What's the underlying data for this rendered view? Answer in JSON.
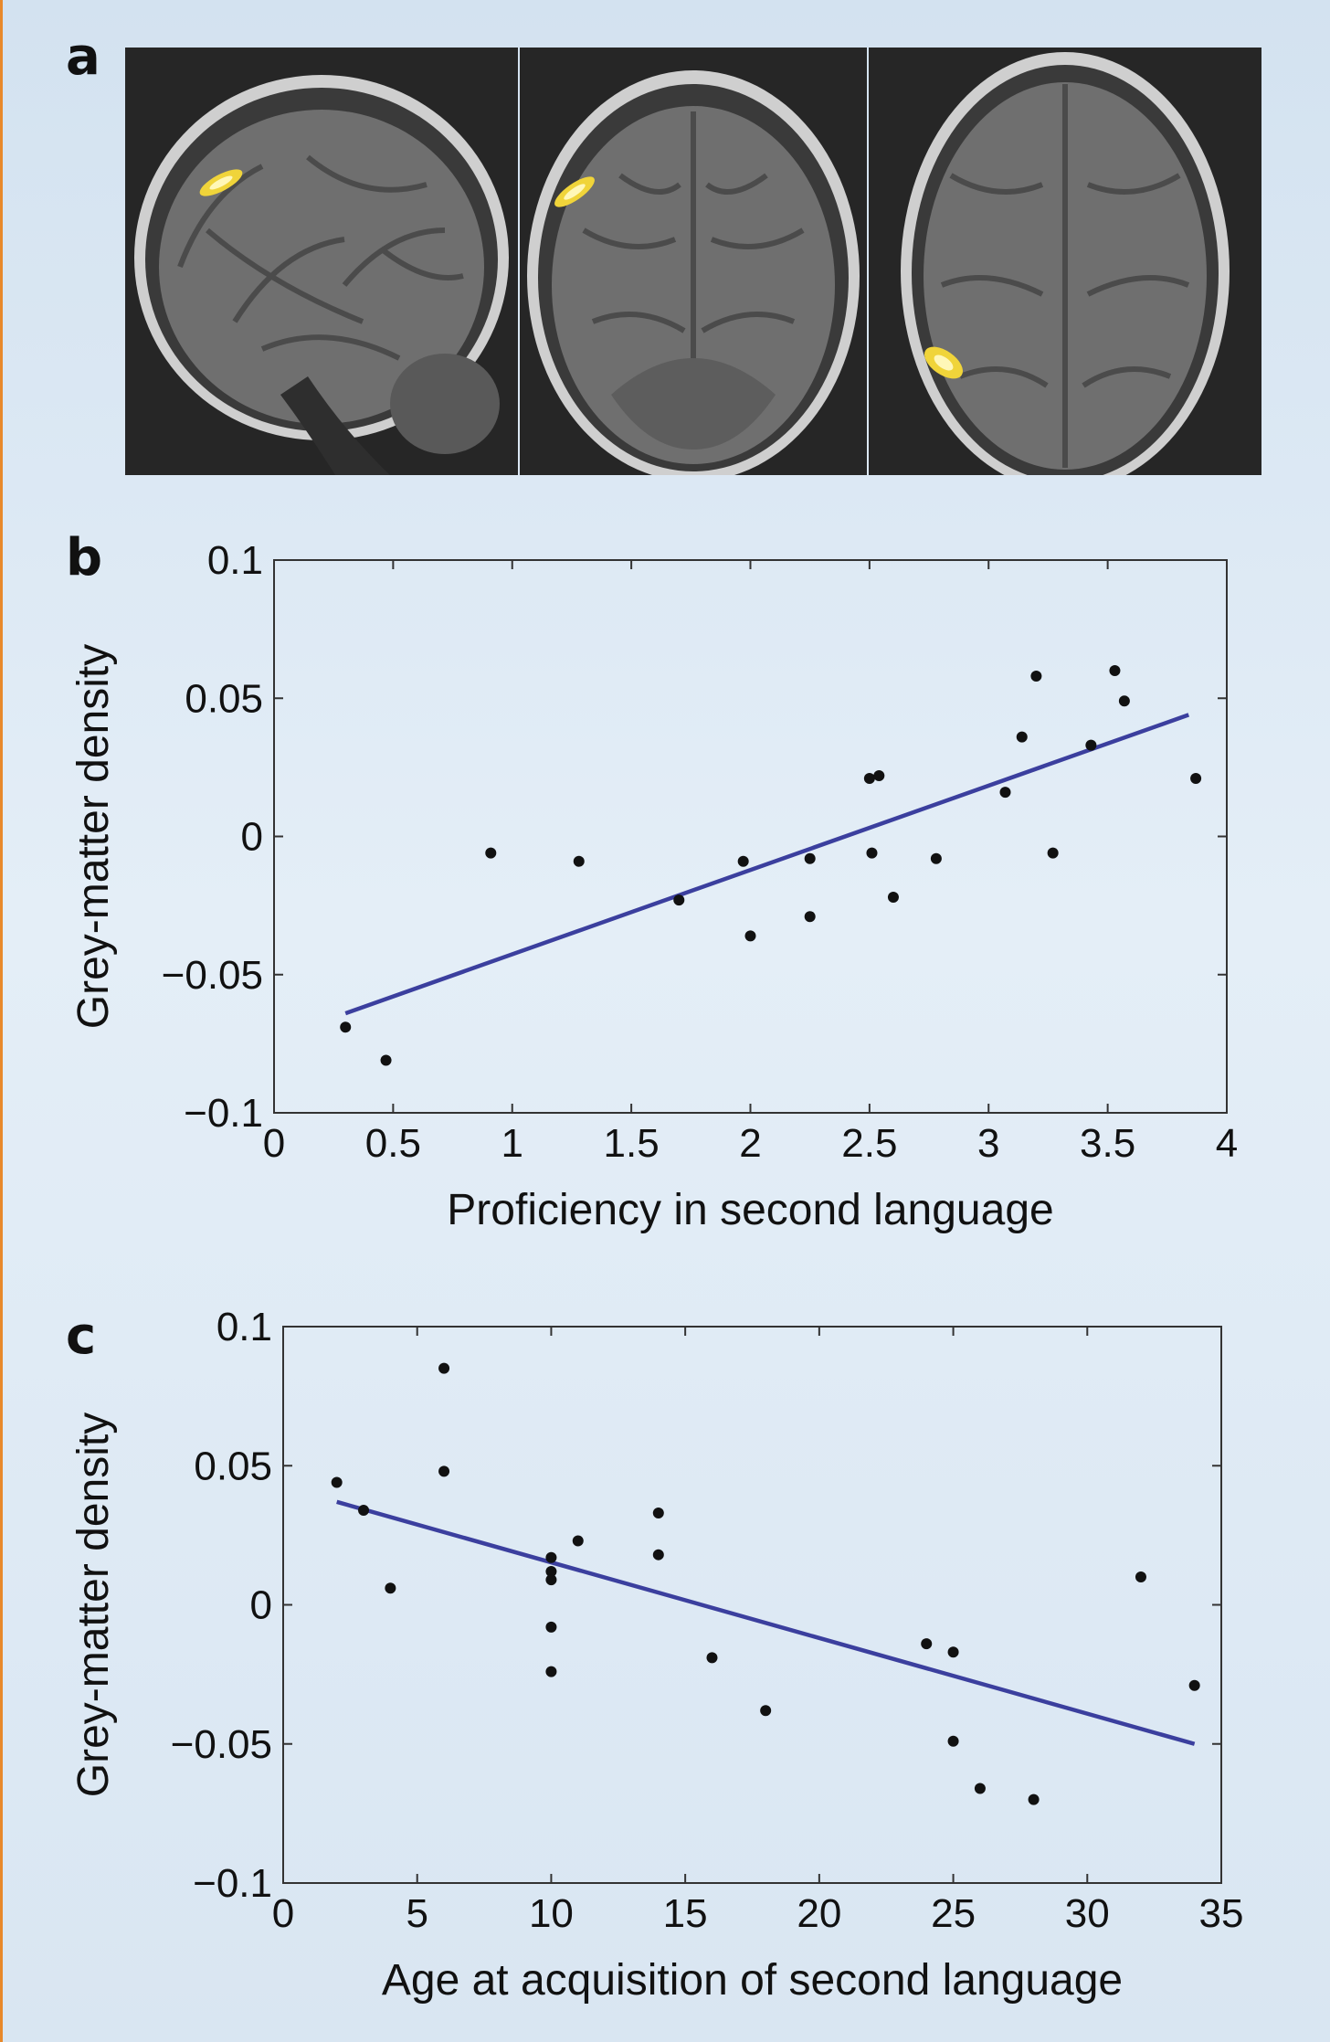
{
  "panels": {
    "a": "a",
    "b": "b",
    "c": "c"
  },
  "brain_images": [
    {
      "view": "sagittal",
      "highlight_color": "#f5e04a"
    },
    {
      "view": "coronal",
      "highlight_color": "#f5e04a"
    },
    {
      "view": "axial",
      "highlight_color": "#f5e04a"
    }
  ],
  "colors": {
    "fit_line": "#3b3f9e",
    "points": "#111111",
    "background": "#dde8f3"
  },
  "chart_data": [
    {
      "panel": "b",
      "type": "scatter",
      "xlabel": "Proficiency in second language",
      "ylabel": "Grey-matter density",
      "xlim": [
        0,
        4
      ],
      "ylim": [
        -0.1,
        0.1
      ],
      "xticks": [
        0,
        0.5,
        1,
        1.5,
        2,
        2.5,
        3,
        3.5,
        4
      ],
      "xtick_labels": [
        "0",
        "0.5",
        "1",
        "1.5",
        "2",
        "2.5",
        "3",
        "3.5",
        "4"
      ],
      "yticks": [
        0.1,
        0.05,
        0,
        -0.05,
        -0.1
      ],
      "ytick_labels": [
        "0.1",
        "0.05",
        "0",
        "−0.05",
        "−0.1"
      ],
      "grid": false,
      "points": [
        [
          0.3,
          -0.069
        ],
        [
          0.47,
          -0.081
        ],
        [
          0.91,
          -0.006
        ],
        [
          1.28,
          -0.009
        ],
        [
          1.7,
          -0.023
        ],
        [
          1.97,
          -0.009
        ],
        [
          2.0,
          -0.036
        ],
        [
          2.25,
          -0.008
        ],
        [
          2.25,
          -0.029
        ],
        [
          2.5,
          0.021
        ],
        [
          2.54,
          0.022
        ],
        [
          2.51,
          -0.006
        ],
        [
          2.6,
          -0.022
        ],
        [
          2.78,
          -0.008
        ],
        [
          3.07,
          0.016
        ],
        [
          3.14,
          0.036
        ],
        [
          3.2,
          0.058
        ],
        [
          3.27,
          -0.006
        ],
        [
          3.43,
          0.033
        ],
        [
          3.53,
          0.06
        ],
        [
          3.57,
          0.049
        ],
        [
          3.87,
          0.021
        ]
      ],
      "fit_line": [
        [
          0.3,
          -0.064
        ],
        [
          3.84,
          0.044
        ]
      ]
    },
    {
      "panel": "c",
      "type": "scatter",
      "xlabel": "Age at acquisition of second language",
      "ylabel": "Grey-matter density",
      "xlim": [
        0,
        35
      ],
      "ylim": [
        -0.1,
        0.1
      ],
      "xticks": [
        0,
        5,
        10,
        15,
        20,
        25,
        30,
        35
      ],
      "xtick_labels": [
        "0",
        "5",
        "10",
        "15",
        "20",
        "25",
        "30",
        "35"
      ],
      "yticks": [
        0.1,
        0.05,
        0,
        -0.05,
        -0.1
      ],
      "ytick_labels": [
        "0.1",
        "0.05",
        "0",
        "−0.05",
        "−0.1"
      ],
      "grid": false,
      "points": [
        [
          2,
          0.044
        ],
        [
          3,
          0.034
        ],
        [
          4,
          0.006
        ],
        [
          6,
          0.085
        ],
        [
          6,
          0.048
        ],
        [
          10,
          0.017
        ],
        [
          10,
          0.012
        ],
        [
          10,
          0.009
        ],
        [
          10,
          -0.008
        ],
        [
          10,
          -0.024
        ],
        [
          11,
          0.023
        ],
        [
          14,
          0.033
        ],
        [
          14,
          0.018
        ],
        [
          16,
          -0.019
        ],
        [
          18,
          -0.038
        ],
        [
          24,
          -0.014
        ],
        [
          25,
          -0.017
        ],
        [
          25,
          -0.049
        ],
        [
          26,
          -0.066
        ],
        [
          28,
          -0.07
        ],
        [
          32,
          0.01
        ],
        [
          34,
          -0.029
        ]
      ],
      "fit_line": [
        [
          2,
          0.037
        ],
        [
          34,
          -0.05
        ]
      ]
    }
  ]
}
